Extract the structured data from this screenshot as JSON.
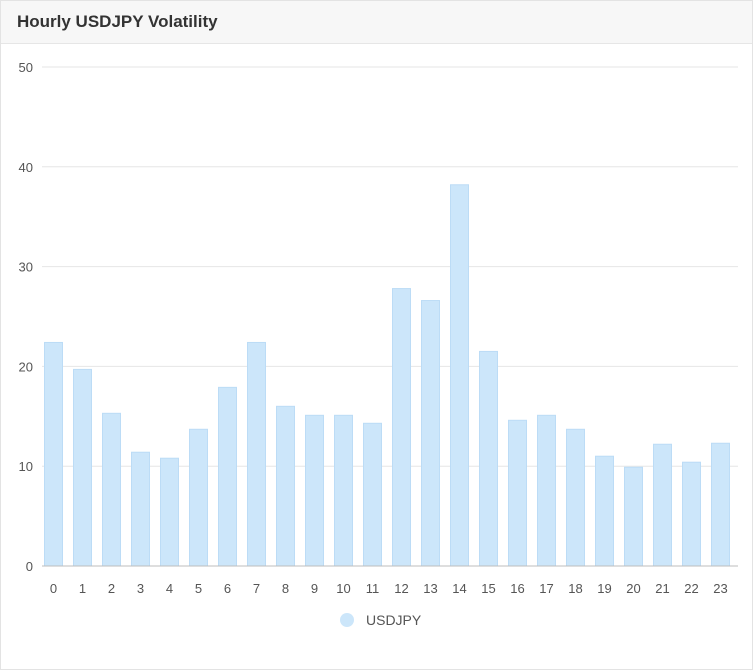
{
  "header": {
    "title": "Hourly USDJPY Volatility"
  },
  "colors": {
    "bar": "#cce6fa",
    "bar_stroke": "#bcdcf6",
    "grid": "#e6e6e6",
    "axis": "#bdbdbd"
  },
  "chart_data": {
    "type": "bar",
    "categories": [
      "0",
      "1",
      "2",
      "3",
      "4",
      "5",
      "6",
      "7",
      "8",
      "9",
      "10",
      "11",
      "12",
      "13",
      "14",
      "15",
      "16",
      "17",
      "18",
      "19",
      "20",
      "21",
      "22",
      "23"
    ],
    "series": [
      {
        "name": "USDJPY",
        "values": [
          22.4,
          19.7,
          15.3,
          11.4,
          10.8,
          13.7,
          17.9,
          22.4,
          16.0,
          15.1,
          15.1,
          14.3,
          27.8,
          26.6,
          38.2,
          21.5,
          14.6,
          15.1,
          13.7,
          11.0,
          9.9,
          12.2,
          10.4,
          12.3
        ]
      }
    ],
    "yticks": [
      "0",
      "10",
      "20",
      "30",
      "40",
      "50"
    ],
    "ylim": [
      0,
      50
    ],
    "grid": true,
    "legend_position": "bottom-center"
  }
}
